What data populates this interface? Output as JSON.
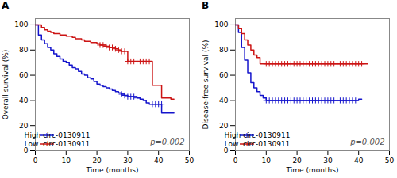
{
  "chart_data": [
    {
      "type": "step",
      "title": "A",
      "xlabel": "Time (months)",
      "ylabel": "Overall survival (%)",
      "xlim": [
        0,
        50
      ],
      "ylim": [
        0,
        105
      ],
      "xticks": [
        0,
        10,
        20,
        30,
        40,
        50
      ],
      "yticks": [
        0,
        20,
        40,
        60,
        80,
        100
      ],
      "grid": false,
      "legend": "lower left",
      "annotation": "p=0.002",
      "series": [
        {
          "name": "High circ-0130911",
          "color": "#1414CC",
          "marker": "plus",
          "x": [
            0,
            1,
            2,
            3,
            4,
            5,
            6,
            7,
            8,
            9,
            10,
            11,
            12,
            13,
            14,
            15,
            16,
            17,
            18,
            19,
            20,
            21,
            22,
            23,
            24,
            25,
            26,
            27,
            28,
            29,
            30,
            31,
            32,
            33,
            34,
            35,
            36,
            37,
            38,
            39,
            40,
            41,
            42,
            43,
            44,
            45
          ],
          "values": [
            100,
            92,
            88,
            85,
            82,
            80,
            77,
            75,
            73,
            71,
            70,
            68,
            66,
            65,
            63,
            61,
            60,
            58,
            57,
            55,
            53,
            52,
            51,
            50,
            49,
            48,
            47,
            46,
            45,
            44,
            43,
            43,
            43,
            42,
            41,
            40,
            38,
            37,
            37,
            37,
            37,
            30,
            30,
            30,
            30,
            30
          ],
          "censor_x": [
            28,
            29,
            30,
            31,
            32,
            33,
            38,
            39,
            40,
            41
          ],
          "censor_values": [
            45,
            44,
            43,
            43,
            43,
            42,
            37,
            37,
            37,
            37
          ]
        },
        {
          "name": "Low  circ-0130911",
          "color": "#CC1414",
          "marker": "plus",
          "x": [
            0,
            1,
            2,
            3,
            4,
            5,
            6,
            7,
            8,
            9,
            10,
            11,
            12,
            13,
            14,
            15,
            16,
            17,
            18,
            19,
            20,
            21,
            22,
            23,
            24,
            25,
            26,
            27,
            28,
            29,
            30,
            31,
            32,
            33,
            34,
            35,
            36,
            37,
            38,
            39,
            40,
            41,
            42,
            43,
            44,
            45
          ],
          "values": [
            100,
            100,
            98,
            96,
            95,
            94,
            93,
            93,
            92,
            92,
            91,
            91,
            90,
            89,
            89,
            88,
            87,
            87,
            86,
            86,
            85,
            84,
            84,
            83,
            82,
            82,
            81,
            80,
            79,
            79,
            71,
            71,
            71,
            71,
            71,
            71,
            71,
            71,
            52,
            52,
            52,
            42,
            42,
            42,
            41,
            41
          ],
          "censor_x": [
            21,
            22,
            23,
            24,
            25,
            26,
            27,
            28,
            29,
            30,
            31,
            32,
            33,
            34,
            35,
            36,
            37
          ],
          "censor_values": [
            84,
            84,
            83,
            82,
            82,
            81,
            80,
            79,
            79,
            71,
            71,
            71,
            71,
            71,
            71,
            71,
            71
          ]
        }
      ]
    },
    {
      "type": "step",
      "title": "B",
      "xlabel": "Time (months)",
      "ylabel": "Disease-free survival (%)",
      "xlim": [
        0,
        50
      ],
      "ylim": [
        0,
        105
      ],
      "xticks": [
        0,
        10,
        20,
        30,
        40,
        50
      ],
      "yticks": [
        0,
        20,
        40,
        60,
        80,
        100
      ],
      "grid": false,
      "legend": "lower left",
      "annotation": "p=0.002",
      "series": [
        {
          "name": "High circ-0130911",
          "color": "#1414CC",
          "marker": "plus",
          "x": [
            0,
            1,
            2,
            3,
            4,
            5,
            6,
            7,
            8,
            9,
            10,
            11,
            12,
            13,
            14,
            15,
            16,
            17,
            18,
            19,
            20,
            21,
            22,
            23,
            24,
            25,
            26,
            27,
            28,
            29,
            30,
            31,
            32,
            33,
            34,
            35,
            36,
            37,
            38,
            39,
            40,
            41
          ],
          "values": [
            100,
            94,
            82,
            72,
            62,
            54,
            50,
            47,
            44,
            42,
            40,
            40,
            40,
            40,
            40,
            40,
            40,
            40,
            40,
            40,
            40,
            40,
            40,
            40,
            40,
            40,
            40,
            40,
            40,
            40,
            40,
            40,
            40,
            40,
            40,
            40,
            40,
            40,
            40,
            40,
            41,
            41
          ],
          "censor_x": [
            10,
            11,
            12,
            13,
            14,
            15,
            16,
            17,
            18,
            19,
            20,
            21,
            22,
            23,
            24,
            25,
            26,
            27,
            28,
            29,
            30,
            31,
            32,
            33,
            34,
            35,
            36,
            37,
            38,
            39
          ],
          "censor_values": [
            40,
            40,
            40,
            40,
            40,
            40,
            40,
            40,
            40,
            40,
            40,
            40,
            40,
            40,
            40,
            40,
            40,
            40,
            40,
            40,
            40,
            40,
            40,
            40,
            40,
            40,
            40,
            40,
            40,
            40
          ]
        },
        {
          "name": "Low  circ-0130911",
          "color": "#CC1414",
          "marker": "plus",
          "x": [
            0,
            1,
            2,
            3,
            4,
            5,
            6,
            7,
            8,
            9,
            10,
            11,
            12,
            13,
            14,
            15,
            16,
            17,
            18,
            19,
            20,
            21,
            22,
            23,
            24,
            25,
            26,
            27,
            28,
            29,
            30,
            31,
            32,
            33,
            34,
            35,
            36,
            37,
            38,
            39,
            40,
            41,
            42,
            43
          ],
          "values": [
            100,
            97,
            93,
            88,
            84,
            80,
            76,
            74,
            69,
            69,
            69,
            69,
            69,
            69,
            69,
            69,
            69,
            69,
            69,
            69,
            69,
            69,
            69,
            69,
            69,
            69,
            69,
            69,
            69,
            69,
            69,
            69,
            69,
            69,
            69,
            69,
            69,
            69,
            69,
            69,
            69,
            69,
            69,
            69
          ],
          "censor_x": [
            10,
            11,
            12,
            13,
            14,
            15,
            16,
            17,
            18,
            19,
            20,
            21,
            22,
            23,
            24,
            25,
            26,
            27,
            28,
            29,
            30,
            31,
            32,
            33,
            34,
            35,
            36,
            37,
            38,
            39,
            40,
            41
          ],
          "censor_values": [
            69,
            69,
            69,
            69,
            69,
            69,
            69,
            69,
            69,
            69,
            69,
            69,
            69,
            69,
            69,
            69,
            69,
            69,
            69,
            69,
            69,
            69,
            69,
            69,
            69,
            69,
            69,
            69,
            69,
            69,
            69,
            69
          ]
        }
      ]
    }
  ]
}
